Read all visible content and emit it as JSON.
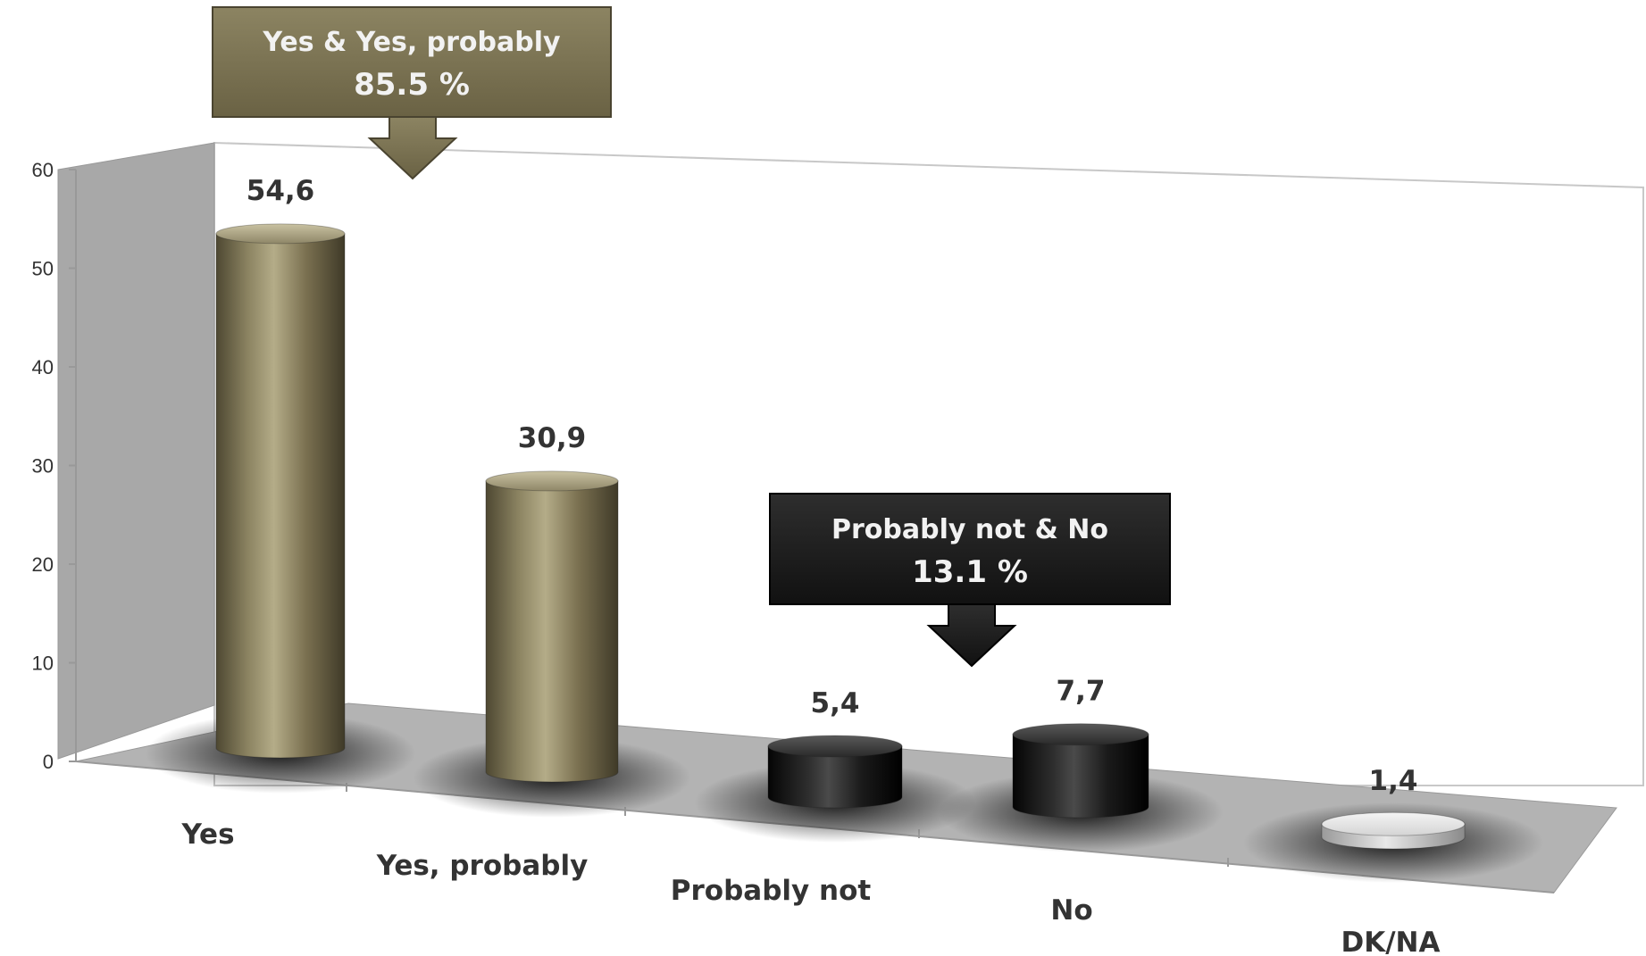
{
  "chart_data": {
    "type": "bar",
    "style": "3d-cylinder",
    "categories": [
      "Yes",
      "Yes, probably",
      "Probably not",
      "No",
      "DK/NA"
    ],
    "values": [
      54.6,
      30.9,
      5.4,
      7.7,
      1.4
    ],
    "value_labels": [
      "54,6",
      "30,9",
      "5,4",
      "7,7",
      "1,4"
    ],
    "bar_colors": [
      "#7a7050",
      "#7a7050",
      "#1c1c1c",
      "#1c1c1c",
      "#cccccc"
    ],
    "ylim": [
      0,
      60
    ],
    "yticks": [
      "0",
      "10",
      "20",
      "30",
      "40",
      "50",
      "60"
    ],
    "grid": false,
    "annotations": [
      {
        "line1": "Yes & Yes, probably",
        "line2": "85.5 %",
        "color": "#7a7050"
      },
      {
        "line1": "Probably not & No",
        "line2": "13.1 %",
        "color": "#1e1e1e"
      }
    ]
  }
}
